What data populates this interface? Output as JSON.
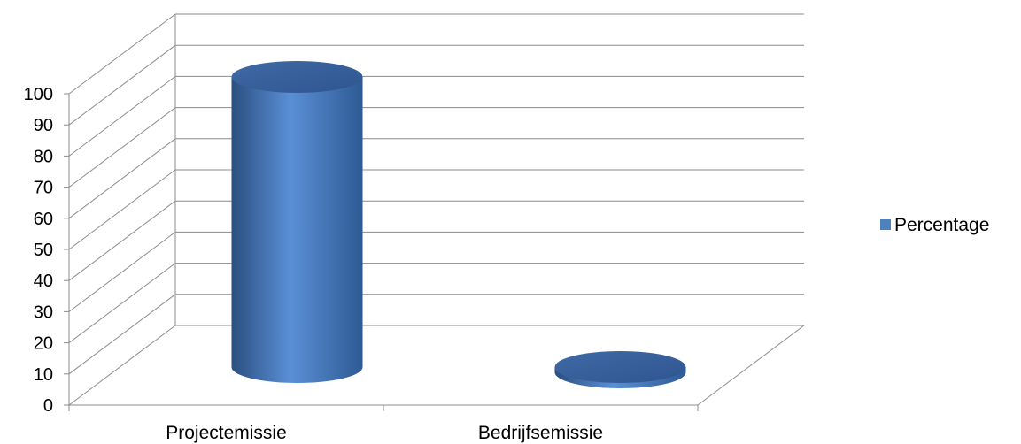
{
  "chart_data": {
    "type": "bar",
    "style": "3d-cylinder",
    "categories": [
      "Projectemissie",
      "Bedrijfsemissie"
    ],
    "series": [
      {
        "name": "Percentage",
        "values": [
          91,
          0
        ],
        "color": "#4f81bd"
      }
    ],
    "ylim": [
      0,
      100
    ],
    "yticks": [
      "0",
      "10",
      "20",
      "30",
      "40",
      "50",
      "60",
      "70",
      "80",
      "90",
      "100"
    ],
    "grid": true,
    "legend": "right"
  }
}
